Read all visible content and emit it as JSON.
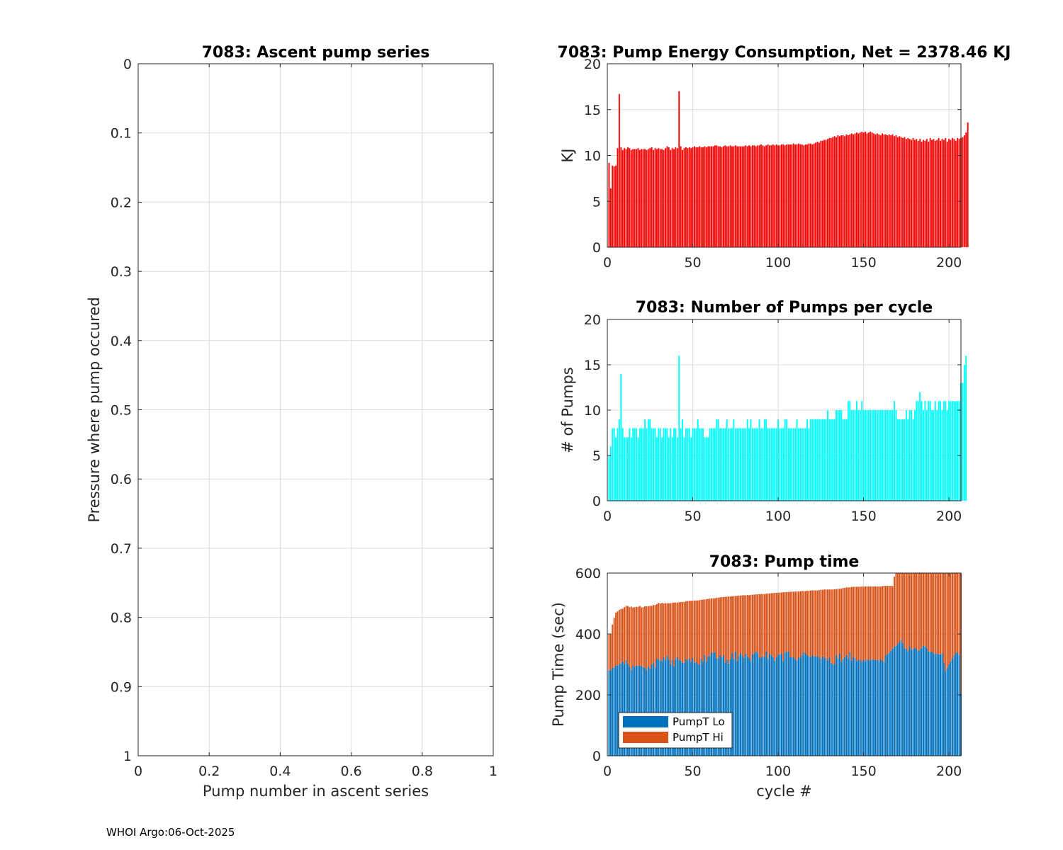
{
  "footer": "WHOI Argo:06-Oct-2025",
  "colors": {
    "energy": "#ff0000",
    "pumps": "#00ffff",
    "lo": "#0072bd",
    "hi": "#d95319",
    "grid": "#dcdcdc",
    "axis": "#262626"
  },
  "chart_data": [
    {
      "id": "ascent",
      "type": "scatter",
      "title": "7083: Ascent pump series",
      "xlabel": "Pump number in ascent series",
      "ylabel": "Pressure where pump occured",
      "xlim": [
        0,
        1
      ],
      "ylim": [
        0,
        1
      ],
      "y_reversed": true,
      "xticks": [
        0,
        0.2,
        0.4,
        0.6,
        0.8,
        1
      ],
      "xtick_labels": [
        "0",
        "0.2",
        "0.4",
        "0.6",
        "0.8",
        "1"
      ],
      "yticks": [
        0,
        0.1,
        0.2,
        0.3,
        0.4,
        0.5,
        0.6,
        0.7,
        0.8,
        0.9,
        1
      ],
      "ytick_labels": [
        "0",
        "0.1",
        "0.2",
        "0.3",
        "0.4",
        "0.5",
        "0.6",
        "0.7",
        "0.8",
        "0.9",
        "1"
      ],
      "grid": true,
      "points": []
    },
    {
      "id": "energy",
      "type": "bar",
      "title": "7083: Pump Energy Consumption,  Net = 2378.46 KJ",
      "xlabel": "",
      "ylabel": "KJ",
      "xlim": [
        0,
        207
      ],
      "ylim": [
        0,
        20
      ],
      "xticks": [
        0,
        50,
        100,
        150,
        200
      ],
      "xtick_labels": [
        "0",
        "50",
        "100",
        "150",
        "200"
      ],
      "yticks": [
        0,
        5,
        10,
        15,
        20
      ],
      "ytick_labels": [
        "0",
        "5",
        "10",
        "15",
        "20"
      ],
      "grid": true,
      "x_start": 1,
      "values": [
        9.2,
        6.4,
        8.9,
        8.8,
        8.9,
        10.8,
        16.7,
        10.9,
        10.6,
        10.8,
        10.7,
        10.9,
        10.8,
        10.6,
        10.7,
        10.7,
        10.7,
        10.8,
        10.6,
        10.7,
        10.7,
        10.7,
        10.6,
        10.7,
        10.8,
        10.9,
        10.6,
        10.8,
        10.7,
        10.8,
        10.7,
        10.7,
        10.6,
        10.8,
        11.0,
        10.9,
        10.6,
        10.8,
        10.7,
        10.9,
        10.8,
        17.0,
        11.0,
        10.6,
        10.8,
        10.9,
        10.8,
        10.9,
        10.8,
        10.9,
        11.0,
        10.9,
        10.9,
        11.0,
        10.9,
        10.9,
        11.0,
        10.9,
        11.0,
        11.0,
        11.0,
        11.0,
        11.1,
        11.1,
        11.0,
        11.0,
        10.9,
        11.0,
        11.1,
        11.0,
        11.0,
        11.1,
        11.0,
        11.0,
        11.1,
        11.0,
        11.0,
        11.0,
        11.0,
        11.0,
        11.1,
        11.0,
        11.1,
        11.0,
        11.1,
        11.1,
        11.0,
        11.1,
        11.1,
        11.2,
        11.1,
        11.0,
        11.1,
        11.2,
        11.1,
        11.1,
        11.2,
        11.1,
        11.2,
        11.1,
        11.1,
        11.2,
        11.2,
        11.1,
        11.2,
        11.2,
        11.2,
        11.2,
        11.3,
        11.2,
        11.2,
        11.3,
        11.2,
        11.2,
        11.1,
        11.2,
        11.2,
        11.3,
        11.3,
        11.2,
        11.3,
        11.4,
        11.5,
        11.4,
        11.6,
        11.6,
        11.7,
        11.7,
        11.8,
        11.9,
        11.9,
        12.0,
        12.1,
        12.0,
        12.2,
        12.1,
        12.2,
        12.2,
        12.1,
        12.3,
        12.2,
        12.3,
        12.4,
        12.3,
        12.4,
        12.5,
        12.4,
        12.5,
        12.6,
        12.5,
        12.6,
        12.4,
        12.5,
        12.6,
        12.5,
        12.4,
        12.3,
        12.4,
        12.3,
        12.2,
        12.4,
        12.3,
        12.3,
        12.2,
        12.3,
        12.2,
        12.3,
        12.1,
        12.2,
        12.0,
        12.1,
        12.0,
        11.9,
        12.0,
        11.8,
        11.9,
        11.8,
        11.7,
        11.9,
        11.7,
        11.8,
        11.6,
        11.8,
        11.5,
        11.7,
        11.6,
        11.8,
        11.5,
        11.9,
        11.7,
        11.8,
        11.6,
        11.7,
        11.9,
        11.6,
        11.8,
        11.7,
        11.9,
        11.5,
        11.8,
        11.7,
        11.9,
        11.8,
        11.6,
        11.9,
        11.8,
        11.9,
        12.0,
        12.2,
        12.5,
        13.6
      ]
    },
    {
      "id": "pumps",
      "type": "bar",
      "title": "7083: Number of Pumps per cycle",
      "xlabel": "",
      "ylabel": "# of Pumps",
      "xlim": [
        0,
        207
      ],
      "ylim": [
        0,
        20
      ],
      "xticks": [
        0,
        50,
        100,
        150,
        200
      ],
      "xtick_labels": [
        "0",
        "50",
        "100",
        "150",
        "200"
      ],
      "yticks": [
        0,
        5,
        10,
        15,
        20
      ],
      "ytick_labels": [
        "0",
        "5",
        "10",
        "15",
        "20"
      ],
      "grid": true,
      "x_start": 1,
      "values": [
        5,
        6,
        8,
        8,
        7,
        8,
        9,
        14,
        8,
        7,
        7,
        7,
        8,
        7,
        8,
        8,
        8,
        7,
        8,
        8,
        8,
        9,
        8,
        9,
        9,
        8,
        8,
        8,
        7,
        8,
        8,
        7,
        8,
        8,
        8,
        7,
        8,
        7,
        8,
        8,
        7,
        16,
        8,
        9,
        7,
        8,
        8,
        8,
        7,
        8,
        8,
        8,
        9,
        8,
        8,
        8,
        7,
        7,
        7,
        8,
        8,
        8,
        8,
        9,
        9,
        8,
        8,
        8,
        8,
        9,
        8,
        8,
        8,
        9,
        8,
        8,
        8,
        8,
        8,
        8,
        8,
        9,
        8,
        9,
        8,
        8,
        8,
        8,
        9,
        8,
        8,
        9,
        9,
        8,
        8,
        8,
        8,
        8,
        8,
        9,
        8,
        8,
        8,
        9,
        9,
        8,
        8,
        8,
        8,
        8,
        9,
        8,
        8,
        8,
        8,
        8,
        9,
        8,
        9,
        9,
        9,
        9,
        9,
        9,
        9,
        9,
        9,
        9,
        10,
        9,
        9,
        9,
        9,
        10,
        10,
        10,
        10,
        9,
        9,
        9,
        11,
        11,
        10,
        10,
        10,
        11,
        10,
        10,
        11,
        10,
        10,
        10,
        10,
        10,
        10,
        10,
        10,
        10,
        10,
        10,
        10,
        10,
        10,
        10,
        10,
        10,
        10,
        11,
        10,
        9,
        9,
        9,
        9,
        9,
        10,
        9,
        10,
        10,
        9,
        10,
        11,
        11,
        12,
        11,
        10,
        11,
        10,
        11,
        11,
        10,
        10,
        11,
        10,
        11,
        11,
        10,
        11,
        11,
        10,
        11,
        11,
        11,
        11,
        11,
        11,
        11,
        13,
        13,
        15,
        16
      ]
    },
    {
      "id": "pumptime",
      "type": "bar",
      "stacked": true,
      "title": "7083: Pump time",
      "xlabel": "cycle #",
      "ylabel": "Pump Time (sec)",
      "xlim": [
        0,
        207
      ],
      "ylim": [
        0,
        600
      ],
      "xticks": [
        0,
        50,
        100,
        150,
        200
      ],
      "xtick_labels": [
        "0",
        "50",
        "100",
        "150",
        "200"
      ],
      "yticks": [
        0,
        200,
        400,
        600
      ],
      "ytick_labels": [
        "0",
        "200",
        "400",
        "600"
      ],
      "grid": true,
      "legend": {
        "location": "bottom-left",
        "entries": [
          "PumpT Lo",
          "PumpT Hi"
        ]
      },
      "x_start": 1,
      "series": [
        {
          "name": "PumpT Lo",
          "values": [
            281,
            280,
            289,
            290,
            296,
            296,
            300,
            304,
            310,
            300,
            314,
            302,
            292,
            282,
            297,
            291,
            296,
            296,
            296,
            294,
            291,
            289,
            282,
            294,
            286,
            300,
            306,
            290,
            318,
            318,
            313,
            311,
            324,
            315,
            329,
            317,
            300,
            316,
            293,
            318,
            324,
            314,
            312,
            306,
            305,
            318,
            313,
            320,
            309,
            321,
            305,
            308,
            300,
            299,
            319,
            308,
            331,
            309,
            326,
            328,
            340,
            338,
            340,
            320,
            320,
            330,
            323,
            330,
            306,
            316,
            303,
            318,
            336,
            318,
            342,
            312,
            328,
            336,
            330,
            321,
            335,
            326,
            321,
            311,
            333,
            336,
            343,
            339,
            322,
            322,
            326,
            325,
            342,
            319,
            335,
            330,
            324,
            312,
            323,
            332,
            333,
            336,
            311,
            339,
            342,
            343,
            324,
            324,
            323,
            317,
            313,
            324,
            321,
            331,
            340,
            336,
            331,
            326,
            324,
            330,
            327,
            326,
            327,
            323,
            317,
            326,
            321,
            321,
            312,
            323,
            305,
            300,
            300,
            330,
            320,
            335,
            308,
            318,
            324,
            330,
            320,
            340,
            312,
            325,
            320,
            311,
            314,
            314,
            309,
            315,
            311,
            318,
            314,
            313,
            318,
            315,
            315,
            314,
            311,
            318,
            313,
            310,
            330,
            334,
            338,
            345,
            352,
            358,
            362,
            367,
            373,
            380,
            370,
            354,
            352,
            344,
            359,
            348,
            351,
            355,
            350,
            346,
            348,
            354,
            362,
            360,
            354,
            342,
            341,
            342,
            337,
            334,
            335,
            334,
            333,
            336,
            305,
            278,
            290,
            300,
            310,
            320,
            330,
            338,
            340,
            332,
            205
          ]
        },
        {
          "name": "PumpT Hi",
          "values": [
            117,
            121,
            142,
            163,
            174,
            178,
            179,
            178,
            173,
            188,
            178,
            190,
            196,
            208,
            190,
            197,
            193,
            193,
            196,
            193,
            197,
            202,
            209,
            197,
            206,
            192,
            189,
            205,
            180,
            184,
            187,
            191,
            176,
            186,
            172,
            184,
            201,
            186,
            210,
            185,
            179,
            190,
            193,
            199,
            200,
            190,
            195,
            189,
            200,
            188,
            205,
            202,
            210,
            212,
            193,
            205,
            182,
            205,
            189,
            188,
            177,
            179,
            177,
            199,
            199,
            190,
            198,
            191,
            216,
            206,
            220,
            205,
            188,
            206,
            183,
            213,
            198,
            190,
            197,
            206,
            192,
            202,
            206,
            217,
            196,
            193,
            187,
            191,
            209,
            209,
            205,
            206,
            190,
            214,
            198,
            204,
            210,
            223,
            212,
            203,
            203,
            200,
            226,
            198,
            196,
            195,
            214,
            215,
            216,
            222,
            226,
            216,
            219,
            210,
            201,
            205,
            211,
            216,
            219,
            213,
            216,
            217,
            216,
            221,
            228,
            219,
            225,
            225,
            234,
            223,
            241,
            246,
            247,
            217,
            228,
            213,
            241,
            233,
            227,
            223,
            233,
            213,
            242,
            230,
            235,
            244,
            241,
            241,
            247,
            240,
            245,
            238,
            242,
            243,
            238,
            241,
            241,
            242,
            245,
            238,
            244,
            248,
            228,
            224,
            220,
            213,
            205,
            230,
            238,
            233,
            227,
            220,
            230,
            246,
            248,
            256,
            241,
            252,
            249,
            245,
            250,
            254,
            252,
            246,
            238,
            240,
            246,
            258,
            259,
            258,
            263,
            266,
            265,
            266,
            267,
            264,
            295,
            322,
            310,
            300,
            290,
            280,
            270,
            262,
            260,
            268,
            395
          ]
        }
      ]
    }
  ]
}
